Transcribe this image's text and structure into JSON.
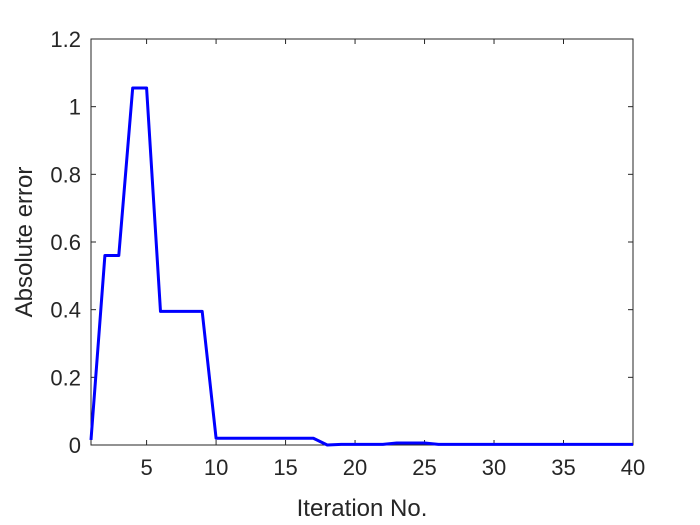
{
  "chart_data": {
    "type": "line",
    "xlabel": "Iteration No.",
    "ylabel": "Absolute error",
    "xlim": [
      1,
      40
    ],
    "ylim": [
      0,
      1.2
    ],
    "xticks": [
      5,
      10,
      15,
      20,
      25,
      30,
      35,
      40
    ],
    "yticks": [
      0,
      0.2,
      0.4,
      0.6,
      0.8,
      1,
      1.2
    ],
    "ytick_labels": [
      "0",
      "0.2",
      "0.4",
      "0.6",
      "0.8",
      "1",
      "1.2"
    ],
    "grid": false,
    "series": [
      {
        "color": "#0000ff",
        "x": [
          1,
          2,
          3,
          4,
          5,
          6,
          7,
          8,
          9,
          10,
          11,
          12,
          13,
          14,
          15,
          16,
          17,
          18,
          19,
          20,
          21,
          22,
          23,
          24,
          25,
          26,
          27,
          28,
          29,
          30,
          31,
          32,
          33,
          34,
          35,
          36,
          37,
          38,
          39,
          40
        ],
        "y": [
          0.015,
          0.56,
          0.56,
          1.055,
          1.055,
          0.395,
          0.395,
          0.395,
          0.395,
          0.02,
          0.02,
          0.02,
          0.02,
          0.02,
          0.02,
          0.02,
          0.02,
          0.0,
          0.002,
          0.002,
          0.002,
          0.002,
          0.006,
          0.006,
          0.006,
          0.002,
          0.002,
          0.002,
          0.002,
          0.002,
          0.002,
          0.002,
          0.002,
          0.002,
          0.002,
          0.002,
          0.002,
          0.002,
          0.002,
          0.002
        ]
      }
    ]
  }
}
